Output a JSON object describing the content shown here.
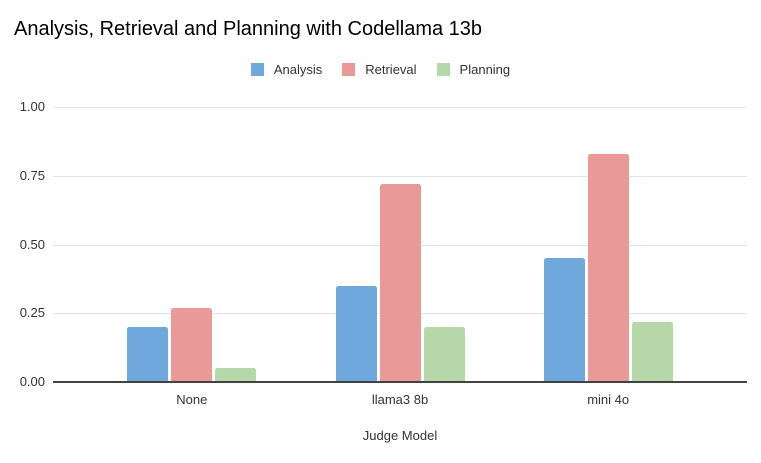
{
  "chart_data": {
    "type": "bar",
    "title": "Analysis, Retrieval and Planning with Codellama 13b",
    "categories": [
      "None",
      "llama3 8b",
      "mini 4o"
    ],
    "series": [
      {
        "name": "Analysis",
        "color": "#6fa8dc",
        "values": [
          0.2,
          0.35,
          0.45
        ]
      },
      {
        "name": "Retrieval",
        "color": "#ea9999",
        "values": [
          0.27,
          0.72,
          0.83
        ]
      },
      {
        "name": "Planning",
        "color": "#b6d7a8",
        "values": [
          0.05,
          0.2,
          0.22
        ]
      }
    ],
    "xlabel": "Judge Model",
    "ylabel": "",
    "ylim": [
      0,
      1.0
    ],
    "yticks": [
      0,
      0.25,
      0.5,
      0.75,
      1.0
    ],
    "ytick_labels": [
      "0.00",
      "0.25",
      "0.50",
      "0.75",
      "1.00"
    ],
    "grid": true,
    "legend_position": "top",
    "colors": {
      "background": "#ffffff",
      "gridline": "#e3e3e3",
      "axis_line": "#424242",
      "title_text": "#000000",
      "label_text": "#333333"
    }
  }
}
